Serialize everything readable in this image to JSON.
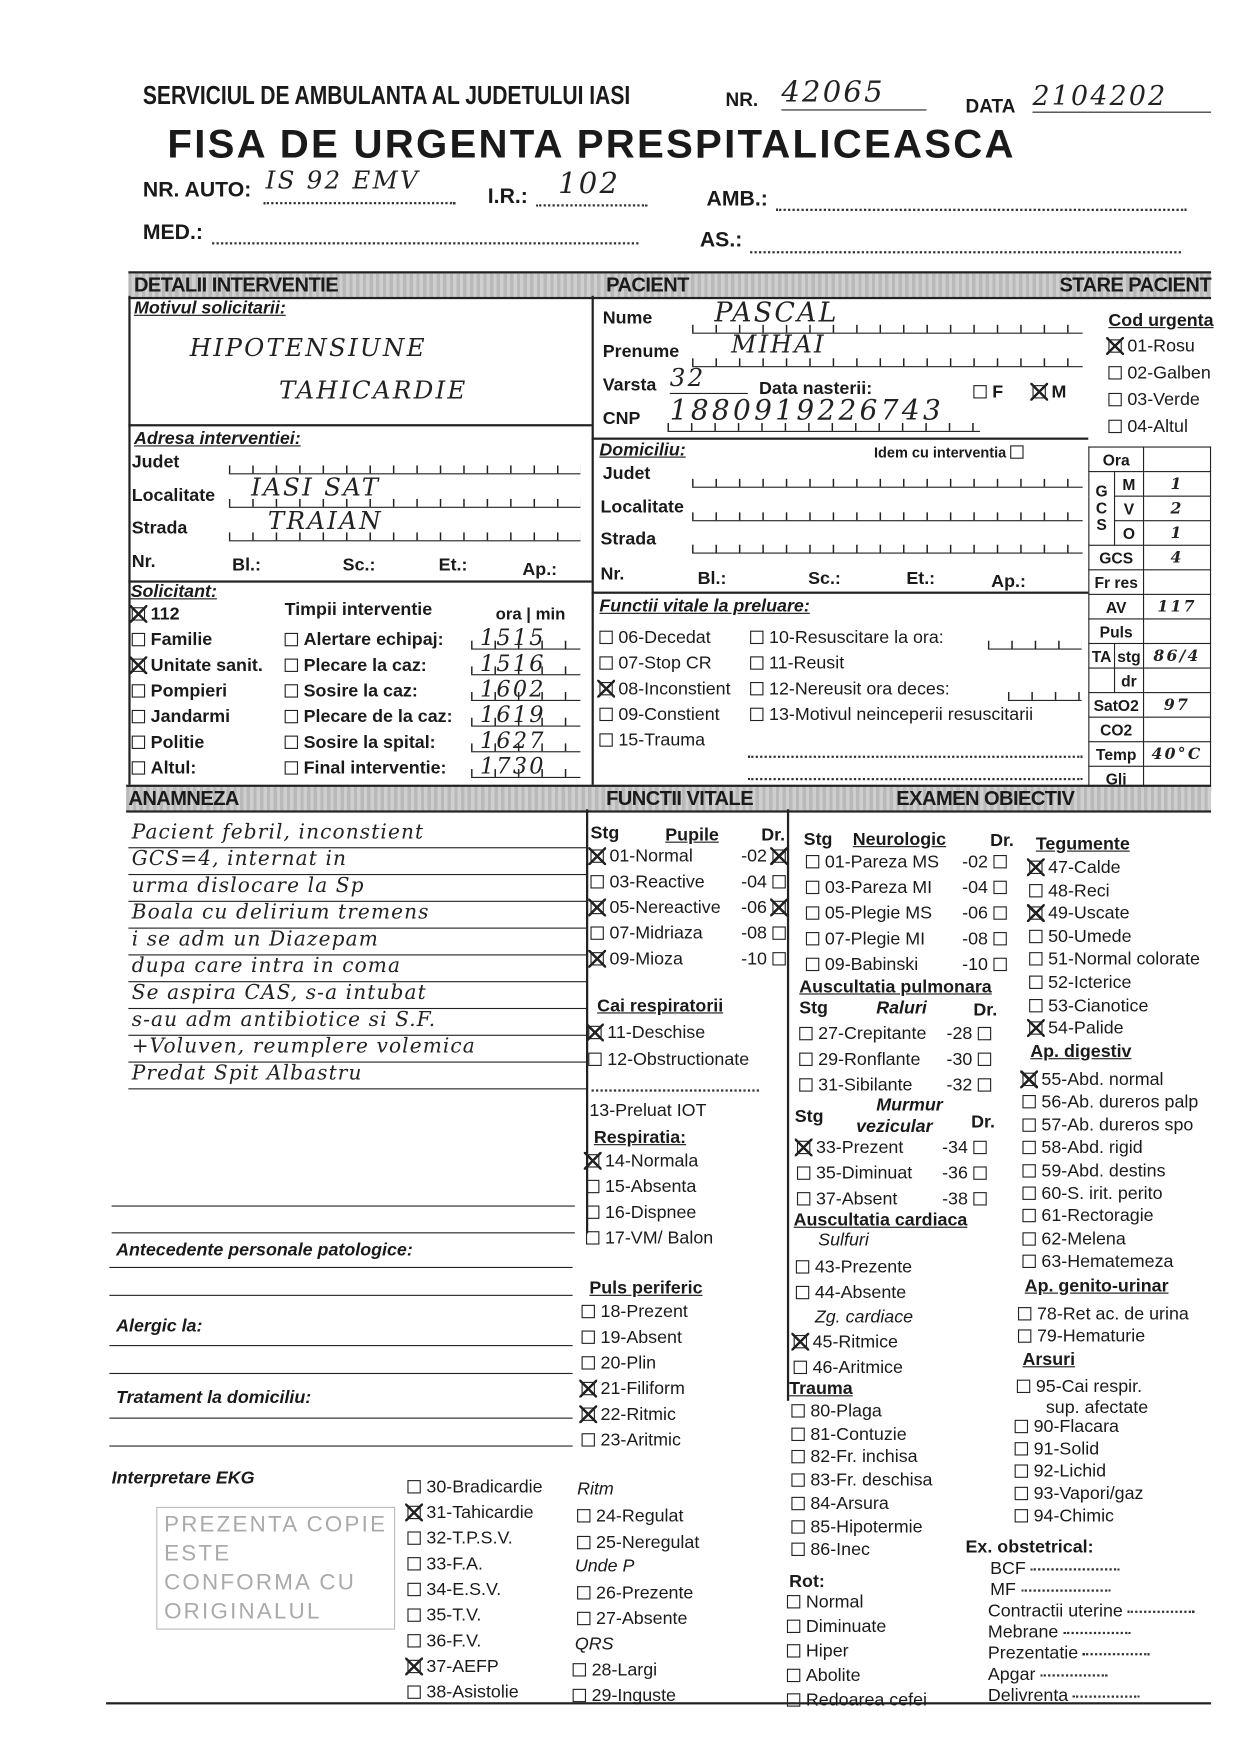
{
  "header": {
    "service": "SERVICIUL DE AMBULANTA AL JUDETULUI IASI",
    "nr_label": "NR.",
    "nr_value": "42065",
    "data_label": "DATA",
    "data_value": "2104202",
    "title": "FISA DE URGENTA PRESPITALICEASCA",
    "nr_auto_label": "NR. AUTO:",
    "nr_auto_value": "IS 92 EMV",
    "ir_label": "I.R.:",
    "ir_value": "102",
    "amb_label": "AMB.:",
    "med_label": "MED.:",
    "as_label": "AS.:"
  },
  "sections": {
    "detalii": "DETALII INTERVENTIE",
    "pacient": "PACIENT",
    "stare": "STARE PACIENT",
    "anamneza": "ANAMNEZA",
    "functii_vitale": "FUNCTII VITALE",
    "examen": "EXAMEN OBIECTIV"
  },
  "motiv": {
    "label": "Motivul solicitarii:",
    "line1": "HIPOTENSIUNE",
    "line2": "TAHICARDIE"
  },
  "adresa": {
    "label": "Adresa interventiei:",
    "judet": "Judet",
    "localitate": "Localitate",
    "localitate_value": "IASI SAT",
    "strada": "Strada",
    "strada_value": "TRAIAN",
    "nr": "Nr.",
    "bl": "Bl.:",
    "sc": "Sc.:",
    "et": "Et.:",
    "ap": "Ap.:"
  },
  "solicitant": {
    "label": "Solicitant:",
    "items": [
      {
        "label": "112",
        "checked": true
      },
      {
        "label": "Familie",
        "checked": false
      },
      {
        "label": "Unitate sanit.",
        "checked": true
      },
      {
        "label": "Pompieri",
        "checked": false
      },
      {
        "label": "Jandarmi",
        "checked": false
      },
      {
        "label": "Politie",
        "checked": false
      },
      {
        "label": "Altul:",
        "checked": false
      }
    ]
  },
  "timpi": {
    "label": "Timpii interventie",
    "ora_min": "ora | min",
    "items": [
      {
        "label": "Alertare echipaj:",
        "value": "1515"
      },
      {
        "label": "Plecare la caz:",
        "value": "1516"
      },
      {
        "label": "Sosire la caz:",
        "value": "1602"
      },
      {
        "label": "Plecare de la caz:",
        "value": "1619"
      },
      {
        "label": "Sosire la spital:",
        "value": "1627"
      },
      {
        "label": "Final interventie:",
        "value": "1730"
      }
    ]
  },
  "pacient": {
    "nume_label": "Nume",
    "nume": "PASCAL",
    "prenume_label": "Prenume",
    "prenume": "MIHAI",
    "varsta_label": "Varsta",
    "varsta": "32",
    "data_nasterii_label": "Data nasterii:",
    "f_label": "F",
    "m_label": "M",
    "cnp_label": "CNP",
    "cnp": "1880919226743"
  },
  "domiciliu": {
    "label": "Domiciliu:",
    "idem": "Idem cu interventia",
    "judet": "Judet",
    "localitate": "Localitate",
    "strada": "Strada",
    "nr": "Nr.",
    "bl": "Bl.:",
    "sc": "Sc.:",
    "et": "Et.:",
    "ap": "Ap.:"
  },
  "functii_preluare": {
    "label": "Functii vitale la preluare:",
    "col1": [
      {
        "label": "06-Decedat",
        "checked": false
      },
      {
        "label": "07-Stop CR",
        "checked": false
      },
      {
        "label": "08-Inconstient",
        "checked": true
      },
      {
        "label": "09-Constient",
        "checked": false
      },
      {
        "label": "15-Trauma",
        "checked": false
      }
    ],
    "col2": [
      {
        "label": "10-Resuscitare la ora:",
        "checked": false
      },
      {
        "label": "11-Reusit",
        "checked": false
      },
      {
        "label": "12-Nereusit ora deces:",
        "checked": false
      },
      {
        "label": "13-Motivul neinceperii resuscitarii",
        "checked": false
      }
    ]
  },
  "cod_urgenta": {
    "label": "Cod urgenta",
    "items": [
      {
        "label": "01-Rosu",
        "checked": true
      },
      {
        "label": "02-Galben",
        "checked": false
      },
      {
        "label": "03-Verde",
        "checked": false
      },
      {
        "label": "04-Altul",
        "checked": false
      }
    ]
  },
  "vitals": {
    "ora": "Ora",
    "g": "G",
    "c": "C",
    "s": "S",
    "m": "M",
    "v": "V",
    "o": "O",
    "gcs": "GCS",
    "fr_res": "Fr res",
    "av": "AV",
    "puls": "Puls",
    "ta": "TA",
    "stg": "stg",
    "dr": "dr",
    "sato2": "SatO2",
    "co2": "CO2",
    "temp": "Temp",
    "gli": "Gli",
    "values": {
      "m": "1",
      "v": "2",
      "o": "1",
      "gcs": "4",
      "av": "117",
      "ta_stg": "86/4",
      "sato2": "97",
      "temp": "40°C"
    }
  },
  "anamneza": {
    "lines": [
      "Pacient febril, inconstient",
      "GCS=4, internat in",
      "urma dislocare la Sp",
      "Boala cu delirium tremens",
      "i se adm un Diazepam",
      "dupa care intra in coma",
      "Se aspira CAS, s-a intubat",
      "s-au adm antibiotice si S.F.",
      "+Voluven, reumplere volemica",
      "Predat Spit Albastru"
    ],
    "antecedente": "Antecedente personale patologice:",
    "alergic": "Alergic la:",
    "tratament": "Tratament la domiciliu:",
    "ekg": "Interpretare EKG"
  },
  "pupile": {
    "stg": "Stg",
    "label": "Pupile",
    "dr": "Dr.",
    "items": [
      {
        "label": "01-Normal",
        "dr": "-02",
        "checked": true,
        "dr_checked": true
      },
      {
        "label": "03-Reactive",
        "dr": "-04",
        "checked": false,
        "dr_checked": false
      },
      {
        "label": "05-Nereactive",
        "dr": "-06",
        "checked": true,
        "dr_checked": true
      },
      {
        "label": "07-Midriaza",
        "dr": "-08",
        "checked": false,
        "dr_checked": false
      },
      {
        "label": "09-Mioza",
        "dr": "-10",
        "checked": true,
        "dr_checked": false
      }
    ]
  },
  "cai_resp": {
    "label": "Cai respiratorii",
    "items": [
      {
        "label": "11-Deschise",
        "checked": true
      },
      {
        "label": "12-Obstructionate",
        "checked": false
      }
    ],
    "iot": "13-Preluat IOT"
  },
  "respiratia": {
    "label": "Respiratia:",
    "items": [
      {
        "label": "14-Normala",
        "checked": true
      },
      {
        "label": "15-Absenta",
        "checked": false
      },
      {
        "label": "16-Dispnee",
        "checked": false
      },
      {
        "label": "17-VM/ Balon",
        "checked": false
      }
    ]
  },
  "puls_periferic": {
    "label": "Puls periferic",
    "items": [
      {
        "label": "18-Prezent",
        "checked": false
      },
      {
        "label": "19-Absent",
        "checked": false
      },
      {
        "label": "20-Plin",
        "checked": false
      },
      {
        "label": "21-Filiform",
        "checked": true
      },
      {
        "label": "22-Ritmic",
        "checked": true
      },
      {
        "label": "23-Aritmic",
        "checked": false
      }
    ]
  },
  "neurologic": {
    "stg": "Stg",
    "label": "Neurologic",
    "dr": "Dr.",
    "items": [
      {
        "label": "01-Pareza MS",
        "dr": "-02",
        "checked": false
      },
      {
        "label": "03-Pareza MI",
        "dr": "-04",
        "checked": false
      },
      {
        "label": "05-Plegie MS",
        "dr": "-06",
        "checked": false
      },
      {
        "label": "07-Plegie MI",
        "dr": "-08",
        "checked": false
      },
      {
        "label": "09-Babinski",
        "dr": "-10",
        "checked": false
      }
    ]
  },
  "ausc_pulm": {
    "label": "Auscultatia pulmonara",
    "stg": "Stg",
    "raluri": "Raluri",
    "dr": "Dr.",
    "items": [
      {
        "label": "27-Crepitante",
        "dr": "-28",
        "checked": false
      },
      {
        "label": "29-Ronflante",
        "dr": "-30",
        "checked": false
      },
      {
        "label": "31-Sibilante",
        "dr": "-32",
        "checked": false
      }
    ],
    "murmur": "Murmur",
    "vezicular": "vezicular",
    "mv_items": [
      {
        "label": "33-Prezent",
        "dr": "-34",
        "checked": true
      },
      {
        "label": "35-Diminuat",
        "dr": "-36",
        "checked": false
      },
      {
        "label": "37-Absent",
        "dr": "-38",
        "checked": false
      }
    ]
  },
  "ausc_card": {
    "label": "Auscultatia cardiaca",
    "sulfuri": "Sulfuri",
    "sulfuri_items": [
      {
        "label": "43-Prezente",
        "checked": false
      },
      {
        "label": "44-Absente",
        "checked": false
      }
    ],
    "zg": "Zg. cardiace",
    "zg_items": [
      {
        "label": "45-Ritmice",
        "checked": true
      },
      {
        "label": "46-Aritmice",
        "checked": false
      }
    ]
  },
  "trauma": {
    "label": "Trauma",
    "items": [
      {
        "label": "80-Plaga",
        "checked": false
      },
      {
        "label": "81-Contuzie",
        "checked": false
      },
      {
        "label": "82-Fr. inchisa",
        "checked": false
      },
      {
        "label": "83-Fr. deschisa",
        "checked": false
      },
      {
        "label": "84-Arsura",
        "checked": false
      },
      {
        "label": "85-Hipotermie",
        "checked": false
      },
      {
        "label": "86-Inec",
        "checked": false
      }
    ]
  },
  "rot": {
    "label": "Rot:",
    "items": [
      {
        "label": "Normal",
        "checked": false
      },
      {
        "label": "Diminuate",
        "checked": false
      },
      {
        "label": "Hiper",
        "checked": false
      },
      {
        "label": "Abolite",
        "checked": false
      },
      {
        "label": "Redoarea cefei",
        "checked": false
      }
    ]
  },
  "tegumente": {
    "label": "Tegumente",
    "items": [
      {
        "label": "47-Calde",
        "checked": true
      },
      {
        "label": "48-Reci",
        "checked": false
      },
      {
        "label": "49-Uscate",
        "checked": true
      },
      {
        "label": "50-Umede",
        "checked": false
      },
      {
        "label": "51-Normal colorate",
        "checked": false
      },
      {
        "label": "52-Icterice",
        "checked": false
      },
      {
        "label": "53-Cianotice",
        "checked": false
      },
      {
        "label": "54-Palide",
        "checked": true
      }
    ]
  },
  "ap_digestiv": {
    "label": "Ap. digestiv",
    "items": [
      {
        "label": "55-Abd. normal",
        "checked": true
      },
      {
        "label": "56-Ab. dureros palp",
        "checked": false
      },
      {
        "label": "57-Ab. dureros spo",
        "checked": false
      },
      {
        "label": "58-Abd. rigid",
        "checked": false
      },
      {
        "label": "59-Abd. destins",
        "checked": false
      },
      {
        "label": "60-S. irit. perito",
        "checked": false
      },
      {
        "label": "61-Rectoragie",
        "checked": false
      },
      {
        "label": "62-Melena",
        "checked": false
      },
      {
        "label": "63-Hematemeza",
        "checked": false
      }
    ]
  },
  "genito": {
    "label": "Ap. genito-urinar",
    "items": [
      {
        "label": "78-Ret ac. de urina",
        "checked": false
      },
      {
        "label": "79-Hematurie",
        "checked": false
      }
    ]
  },
  "arsuri": {
    "label": "Arsuri",
    "items": [
      {
        "label": "95-Cai respir.",
        "checked": false
      },
      {
        "label": "90-Flacara",
        "checked": false
      },
      {
        "label": "91-Solid",
        "checked": false
      },
      {
        "label": "92-Lichid",
        "checked": false
      },
      {
        "label": "93-Vapori/gaz",
        "checked": false
      },
      {
        "label": "94-Chimic",
        "checked": false
      }
    ],
    "sup": "sup. afectate"
  },
  "obstetrical": {
    "label": "Ex. obstetrical:",
    "items": [
      "BCF",
      "MF",
      "Contractii uterine",
      "Mebrane",
      "Prezentatie",
      "Apgar",
      "Delivrenta"
    ]
  },
  "ekg": {
    "items": [
      {
        "label": "30-Bradicardie",
        "checked": false
      },
      {
        "label": "31-Tahicardie",
        "checked": true
      },
      {
        "label": "32-T.P.S.V.",
        "checked": false
      },
      {
        "label": "33-F.A.",
        "checked": false
      },
      {
        "label": "34-E.S.V.",
        "checked": false
      },
      {
        "label": "35-T.V.",
        "checked": false
      },
      {
        "label": "36-F.V.",
        "checked": false
      },
      {
        "label": "37-AEFP",
        "checked": true
      },
      {
        "label": "38-Asistolie",
        "checked": false
      }
    ],
    "ritm": "Ritm",
    "ritm_items": [
      {
        "label": "24-Regulat",
        "checked": false
      },
      {
        "label": "25-Neregulat",
        "checked": false
      }
    ],
    "unde_p": "Unde P",
    "p_items": [
      {
        "label": "26-Prezente",
        "checked": false
      },
      {
        "label": "27-Absente",
        "checked": false
      }
    ],
    "qrs": "QRS",
    "qrs_items": [
      {
        "label": "28-Largi",
        "checked": false
      },
      {
        "label": "29-Inguste",
        "checked": false
      }
    ]
  },
  "stamp": {
    "text": "PREZENTA COPIE ESTE CONFORMA CU ORIGINALUL"
  }
}
